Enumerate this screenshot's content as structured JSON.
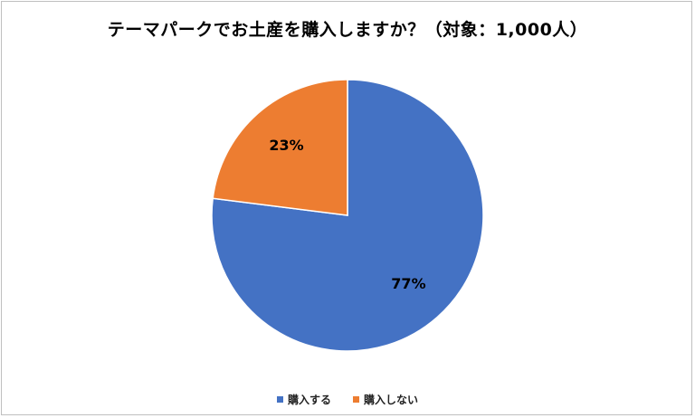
{
  "chart_data": {
    "type": "pie",
    "title": "テーマパークでお土産を購入しますか？（対象：1,000人）",
    "categories": [
      "購入する",
      "購入しない"
    ],
    "values": [
      77,
      23
    ],
    "labels": [
      "77%",
      "23%"
    ],
    "colors": [
      "#4472C4",
      "#ED7D31"
    ],
    "legend_position": "bottom",
    "start_angle_deg": 0,
    "direction": "clockwise"
  }
}
